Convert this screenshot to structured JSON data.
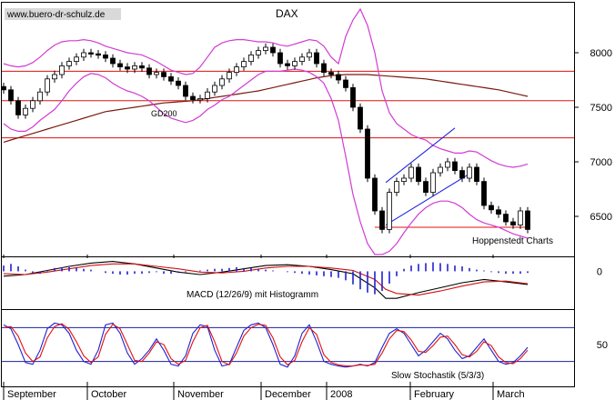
{
  "watermark": "www.buero-dr-schulz.de",
  "title": "DAX",
  "source": "Hoppenstedt Charts",
  "colors": {
    "candle": "#000000",
    "bollinger": "#d23cd2",
    "moving_average": "#7a1a10",
    "support_resistance": "#e01010",
    "channel": "#1a20e0",
    "macd_line": "#000000",
    "signal_line": "#d01010",
    "histogram": "#2020d0",
    "stoch_k": "#2020d0",
    "stoch_d": "#e01010"
  },
  "months": [
    "September",
    "October",
    "November",
    "December",
    "2008",
    "February",
    "March"
  ],
  "chart_data": [
    {
      "type": "candlestick",
      "name": "price",
      "title": "DAX",
      "ylim": [
        6150,
        8450
      ],
      "yticks": [
        8000,
        7500,
        7000,
        6500
      ],
      "x": [
        0,
        8,
        16,
        24,
        32,
        40,
        48,
        56,
        64,
        72,
        80,
        88,
        96,
        104,
        112,
        120,
        128,
        136,
        144,
        152,
        160,
        168,
        176,
        184,
        192,
        200,
        208,
        216,
        224,
        232,
        240,
        248,
        256,
        264,
        272,
        280,
        288,
        296,
        304,
        312,
        320,
        328,
        336,
        344,
        352,
        360,
        368,
        376,
        384,
        392,
        400,
        408,
        416,
        424,
        432,
        440,
        448,
        456,
        464,
        472,
        480,
        488,
        496,
        504,
        512,
        520,
        528,
        536,
        544,
        552,
        560,
        568,
        576
      ],
      "close": [
        7660,
        7560,
        7430,
        7490,
        7560,
        7640,
        7760,
        7800,
        7880,
        7920,
        7960,
        8000,
        7990,
        7980,
        7950,
        7900,
        7870,
        7850,
        7880,
        7860,
        7800,
        7820,
        7780,
        7740,
        7700,
        7600,
        7570,
        7580,
        7640,
        7700,
        7760,
        7820,
        7870,
        7920,
        7980,
        8020,
        8050,
        8000,
        7900,
        7880,
        7920,
        7960,
        8000,
        7900,
        7820,
        7800,
        7750,
        7680,
        7500,
        7300,
        6850,
        6550,
        6380,
        6720,
        6820,
        6850,
        6950,
        6820,
        6720,
        6900,
        6950,
        7000,
        6920,
        6850,
        6950,
        6820,
        6600,
        6560,
        6520,
        6450,
        6420,
        6550,
        6380
      ],
      "bollinger_upper": [
        7900,
        7880,
        7870,
        7880,
        7910,
        7960,
        8020,
        8070,
        8100,
        8110,
        8110,
        8120,
        8110,
        8090,
        8060,
        8040,
        8020,
        8000,
        7990,
        7980,
        7950,
        7920,
        7880,
        7840,
        7820,
        7800,
        7810,
        7870,
        7960,
        8050,
        8090,
        8110,
        8120,
        8120,
        8110,
        8100,
        8100,
        8090,
        8070,
        8060,
        8080,
        8100,
        8120,
        8110,
        8060,
        7960,
        7900,
        8150,
        8300,
        8400,
        8250,
        8000,
        7650,
        7450,
        7350,
        7300,
        7250,
        7220,
        7200,
        7150,
        7120,
        7100,
        7080,
        7080,
        7100,
        7090,
        7050,
        7010,
        6980,
        6960,
        6950,
        6960,
        6980
      ],
      "bollinger_lower": [
        7350,
        7300,
        7280,
        7280,
        7320,
        7380,
        7430,
        7480,
        7560,
        7650,
        7720,
        7780,
        7810,
        7800,
        7770,
        7720,
        7680,
        7650,
        7630,
        7600,
        7560,
        7500,
        7440,
        7400,
        7380,
        7360,
        7380,
        7420,
        7480,
        7520,
        7570,
        7600,
        7650,
        7700,
        7750,
        7800,
        7830,
        7830,
        7830,
        7840,
        7850,
        7840,
        7820,
        7780,
        7720,
        7580,
        7380,
        7050,
        6700,
        6450,
        6250,
        6150,
        6150,
        6180,
        6250,
        6350,
        6440,
        6520,
        6580,
        6620,
        6640,
        6640,
        6620,
        6580,
        6520,
        6470,
        6440,
        6420,
        6400,
        6370,
        6340,
        6320,
        6300
      ],
      "moving_average_200": [
        7180,
        7200,
        7220,
        7240,
        7260,
        7280,
        7300,
        7320,
        7340,
        7360,
        7380,
        7400,
        7420,
        7440,
        7460,
        7470,
        7480,
        7490,
        7500,
        7510,
        7520,
        7530,
        7540,
        7545,
        7550,
        7555,
        7560,
        7570,
        7580,
        7590,
        7600,
        7610,
        7620,
        7630,
        7640,
        7650,
        7665,
        7680,
        7695,
        7710,
        7725,
        7740,
        7755,
        7770,
        7780,
        7790,
        7795,
        7800,
        7800,
        7800,
        7800,
        7795,
        7790,
        7785,
        7780,
        7775,
        7770,
        7765,
        7760,
        7750,
        7740,
        7730,
        7720,
        7710,
        7700,
        7690,
        7680,
        7670,
        7660,
        7645,
        7630,
        7615,
        7600
      ],
      "horizontal_lines": [
        7830,
        7560,
        7220
      ],
      "support_line": {
        "value": 6400,
        "x_start": 408,
        "x_end": 576
      },
      "channel": {
        "lower": [
          [
            420,
            6420
          ],
          [
            512,
            6890
          ]
        ],
        "upper": [
          [
            420,
            6810
          ],
          [
            496,
            7310
          ]
        ]
      },
      "annotations": [
        "GD200"
      ]
    },
    {
      "type": "line",
      "name": "macd",
      "title": "MACD (12/26/9) mit Histogramm",
      "ylim": [
        -4.5,
        1.6
      ],
      "yticks": [
        0
      ],
      "x": [
        0,
        24,
        48,
        72,
        96,
        120,
        144,
        168,
        192,
        216,
        240,
        264,
        288,
        312,
        336,
        360,
        384,
        408,
        420,
        432,
        456,
        480,
        504,
        528,
        552,
        576
      ],
      "macd": [
        -0.6,
        -0.4,
        0.1,
        0.6,
        1.0,
        1.2,
        0.9,
        0.4,
        -0.1,
        -0.4,
        -0.1,
        0.3,
        0.7,
        0.8,
        0.6,
        0.2,
        -0.3,
        -2.0,
        -3.3,
        -3.3,
        -2.6,
        -2.0,
        -1.4,
        -1.0,
        -1.3,
        -1.6
      ],
      "signal": [
        -0.3,
        -0.4,
        -0.1,
        0.3,
        0.7,
        0.9,
        0.9,
        0.6,
        0.3,
        -0.1,
        -0.2,
        0.0,
        0.4,
        0.6,
        0.6,
        0.4,
        0.1,
        -1.0,
        -2.2,
        -2.7,
        -2.9,
        -2.4,
        -1.8,
        -1.3,
        -1.2,
        -1.5
      ],
      "histogram_x": [
        0,
        8,
        16,
        24,
        32,
        40,
        48,
        56,
        64,
        72,
        80,
        88,
        96,
        104,
        112,
        120,
        128,
        136,
        144,
        152,
        160,
        168,
        176,
        184,
        192,
        200,
        208,
        216,
        224,
        232,
        240,
        248,
        256,
        264,
        272,
        280,
        288,
        296,
        304,
        312,
        320,
        328,
        336,
        344,
        352,
        360,
        368,
        376,
        384,
        392,
        400,
        408,
        416,
        424,
        432,
        440,
        448,
        456,
        464,
        472,
        480,
        488,
        496,
        504,
        512,
        520,
        528,
        536,
        544,
        552,
        560,
        568,
        576
      ],
      "histogram": [
        0.7,
        0.9,
        0.6,
        0.2,
        -0.2,
        -0.3,
        0.1,
        0.4,
        0.5,
        0.5,
        0.4,
        0.3,
        0.2,
        0.0,
        -0.2,
        -0.3,
        -0.4,
        -0.4,
        -0.3,
        -0.3,
        -0.2,
        -0.1,
        -0.3,
        -0.3,
        -0.2,
        -0.1,
        0.0,
        0.1,
        0.2,
        0.3,
        0.3,
        0.4,
        0.5,
        0.4,
        0.4,
        0.3,
        0.2,
        0.1,
        0.0,
        -0.1,
        -0.2,
        -0.3,
        -0.4,
        -0.5,
        -0.6,
        -0.7,
        -0.8,
        -1.1,
        -1.6,
        -2.2,
        -2.6,
        -2.8,
        -2.4,
        -1.5,
        -0.6,
        0.3,
        0.7,
        0.9,
        1.0,
        1.1,
        1.0,
        0.9,
        0.7,
        0.6,
        0.4,
        0.2,
        0.1,
        -0.1,
        -0.2,
        -0.3,
        -0.3,
        -0.3,
        -0.2
      ]
    },
    {
      "type": "line",
      "name": "slow_stochastic",
      "title": "Slow Stochastik (5/3/3)",
      "ylim": [
        0,
        100
      ],
      "yticks": [
        50
      ],
      "horizontal_lines": [
        80,
        20
      ],
      "x": [
        0,
        8,
        16,
        24,
        32,
        40,
        48,
        56,
        64,
        72,
        80,
        88,
        96,
        104,
        112,
        120,
        128,
        136,
        144,
        152,
        160,
        168,
        176,
        184,
        192,
        200,
        208,
        216,
        224,
        232,
        240,
        248,
        256,
        264,
        272,
        280,
        288,
        296,
        304,
        312,
        320,
        328,
        336,
        344,
        352,
        360,
        368,
        376,
        384,
        392,
        400,
        408,
        416,
        424,
        432,
        440,
        448,
        456,
        464,
        472,
        480,
        488,
        496,
        504,
        512,
        520,
        528,
        536,
        544,
        552,
        560,
        568,
        576
      ],
      "k": [
        85,
        78,
        50,
        18,
        15,
        40,
        78,
        88,
        85,
        70,
        40,
        20,
        15,
        40,
        85,
        88,
        70,
        35,
        15,
        25,
        40,
        60,
        40,
        15,
        12,
        30,
        70,
        85,
        82,
        40,
        12,
        15,
        45,
        75,
        85,
        88,
        80,
        50,
        15,
        10,
        30,
        70,
        85,
        55,
        20,
        15,
        12,
        10,
        12,
        15,
        12,
        18,
        45,
        70,
        78,
        70,
        50,
        30,
        40,
        55,
        70,
        60,
        40,
        25,
        30,
        45,
        60,
        40,
        20,
        15,
        18,
        30,
        45
      ],
      "d": [
        80,
        82,
        65,
        35,
        20,
        28,
        62,
        82,
        87,
        77,
        55,
        30,
        18,
        28,
        68,
        86,
        78,
        50,
        22,
        20,
        35,
        55,
        50,
        25,
        15,
        22,
        55,
        80,
        84,
        55,
        20,
        14,
        35,
        65,
        80,
        86,
        84,
        62,
        28,
        14,
        22,
        55,
        80,
        68,
        32,
        18,
        14,
        12,
        12,
        14,
        13,
        15,
        35,
        60,
        75,
        73,
        58,
        38,
        36,
        48,
        63,
        65,
        50,
        32,
        28,
        38,
        55,
        48,
        28,
        18,
        16,
        25,
        40
      ]
    }
  ]
}
